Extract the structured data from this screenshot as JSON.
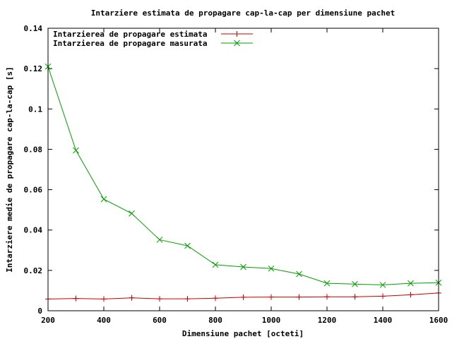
{
  "chart_data": {
    "type": "line",
    "title": "Intarziere estimata de propagare cap-la-cap per dimensiune pachet",
    "xlabel": "Dimensiune pachet [octeti]",
    "ylabel": "Intarziere medie de propagare cap-la-cap [s]",
    "xlim": [
      200,
      1600
    ],
    "ylim": [
      0,
      0.14
    ],
    "xticks": [
      200,
      400,
      600,
      800,
      1000,
      1200,
      1400,
      1600
    ],
    "yticks": [
      0,
      0.02,
      0.04,
      0.06,
      0.08,
      0.1,
      0.12,
      0.14
    ],
    "xtick_labels": [
      "200",
      "400",
      "600",
      "800",
      "1000",
      "1200",
      "1400",
      "1600"
    ],
    "ytick_labels": [
      "0",
      "0.02",
      "0.04",
      "0.06",
      "0.08",
      "0.1",
      "0.12",
      "0.14"
    ],
    "grid": false,
    "legend_position": "top-left",
    "x": [
      200,
      300,
      400,
      500,
      600,
      700,
      800,
      900,
      1000,
      1100,
      1200,
      1300,
      1400,
      1500,
      1600
    ],
    "series": [
      {
        "name": "Intarzierea de propagare estimata",
        "color": "#cc0000",
        "marker": "plus",
        "values": [
          0.0058,
          0.0061,
          0.0058,
          0.0064,
          0.0059,
          0.0059,
          0.0062,
          0.0067,
          0.0068,
          0.0068,
          0.0069,
          0.0069,
          0.0072,
          0.0079,
          0.0088
        ]
      },
      {
        "name": "Intarzierea de propagare masurata",
        "color": "#00a000",
        "marker": "cross",
        "values": [
          0.121,
          0.0795,
          0.0553,
          0.0482,
          0.0352,
          0.0322,
          0.0228,
          0.0217,
          0.0209,
          0.0182,
          0.0136,
          0.0132,
          0.0128,
          0.0136,
          0.0139
        ]
      }
    ]
  }
}
